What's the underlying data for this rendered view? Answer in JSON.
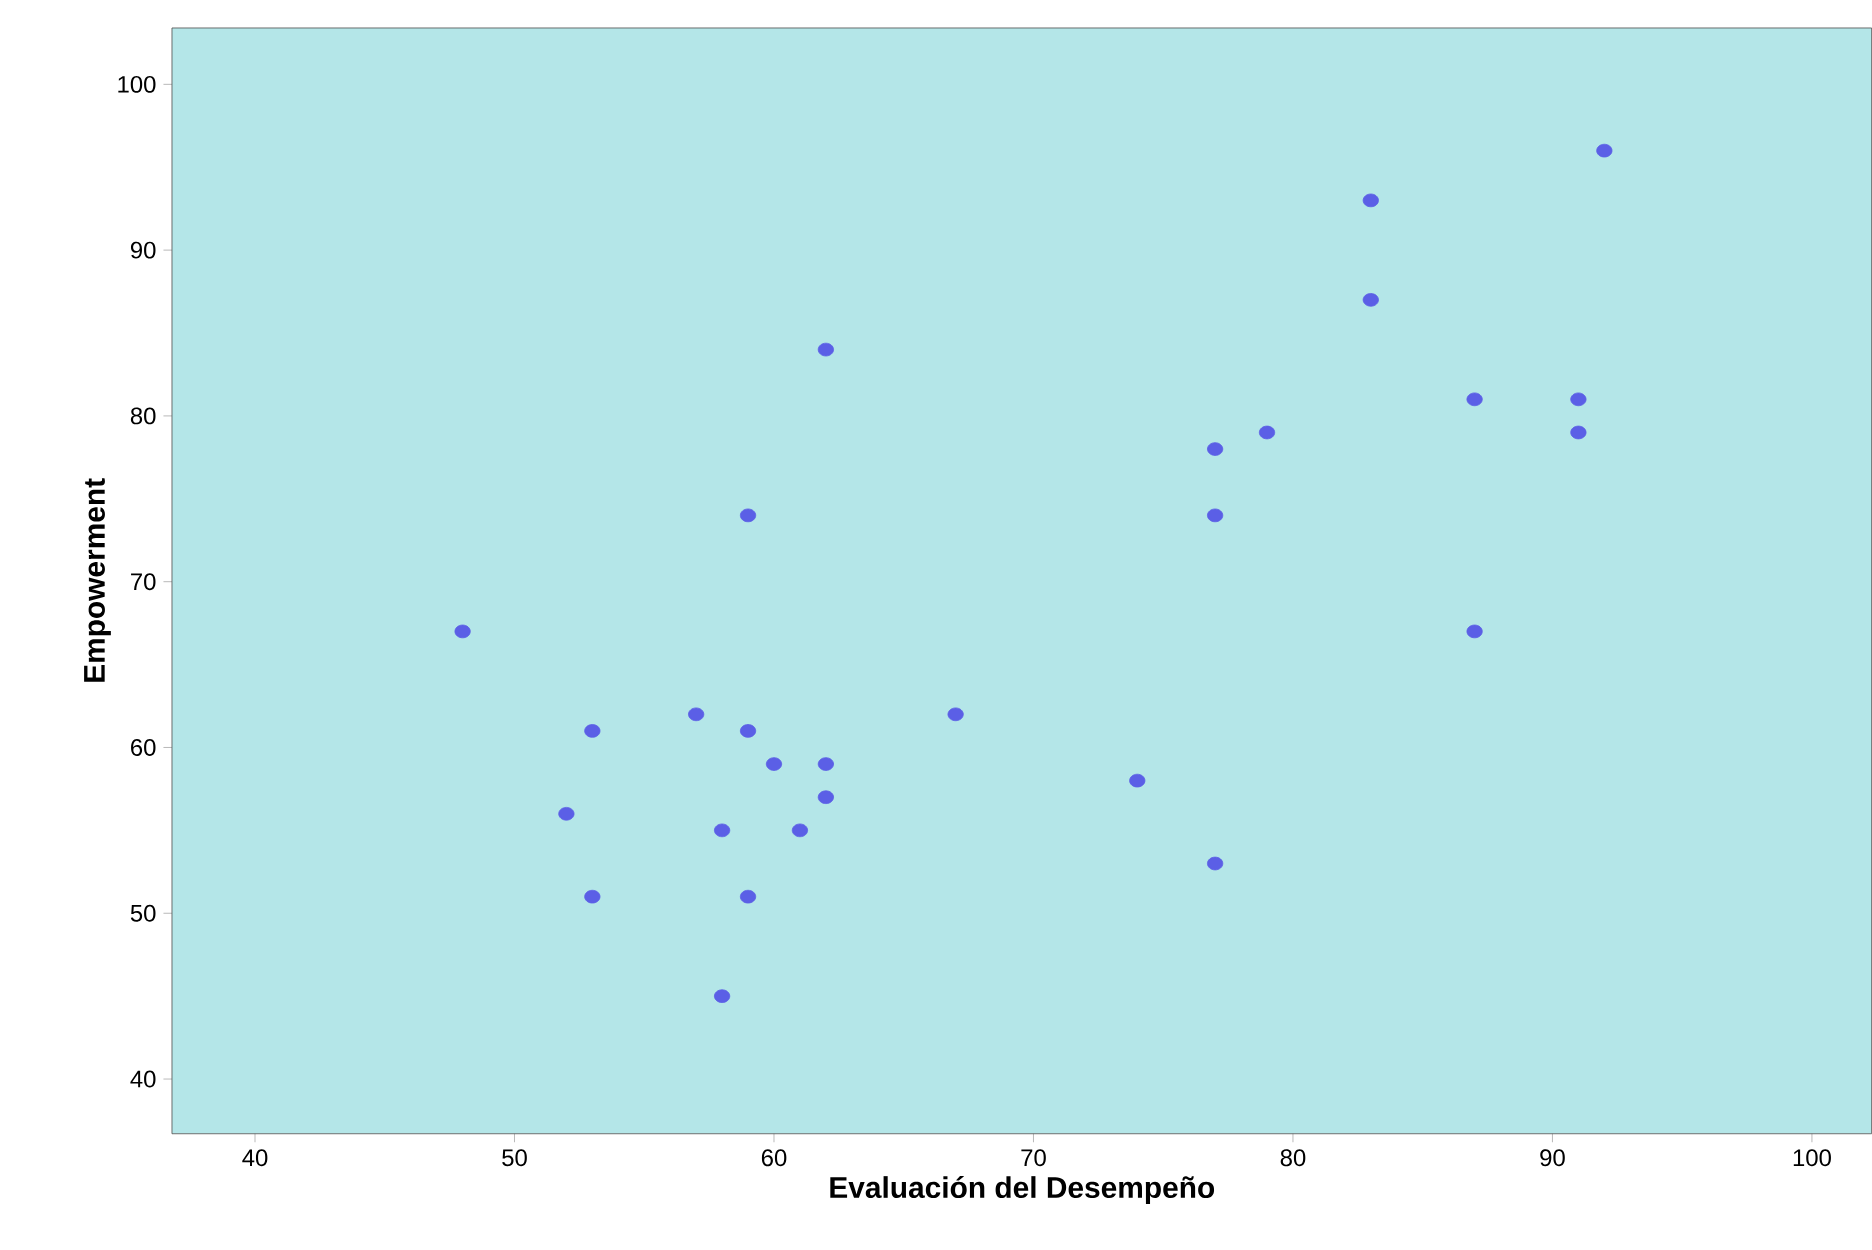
{
  "chart_data": {
    "type": "scatter",
    "xlabel": "Evaluación del Desempeño",
    "ylabel": "Empowerment",
    "color": "#5b5fe6",
    "marker": "circle",
    "grid": false,
    "x": [
      48,
      53,
      52,
      53,
      57,
      59,
      59,
      62,
      60,
      62,
      62,
      58,
      61,
      59,
      58,
      67,
      74,
      77,
      77,
      77,
      79,
      83,
      83,
      87,
      87,
      91,
      91,
      92
    ],
    "values": [
      67,
      61,
      56,
      51,
      62,
      61,
      74,
      84,
      59,
      59,
      57,
      55,
      55,
      51,
      45,
      62,
      58,
      53,
      74,
      78,
      79,
      93,
      87,
      81,
      67,
      81,
      79,
      96
    ],
    "xlim": [
      36.8,
      102.3
    ],
    "ylim": [
      36.7,
      103.4
    ],
    "xticks": [
      40,
      50,
      60,
      70,
      80,
      90,
      100
    ],
    "yticks": [
      40,
      50,
      60,
      70,
      80,
      90,
      100
    ]
  }
}
